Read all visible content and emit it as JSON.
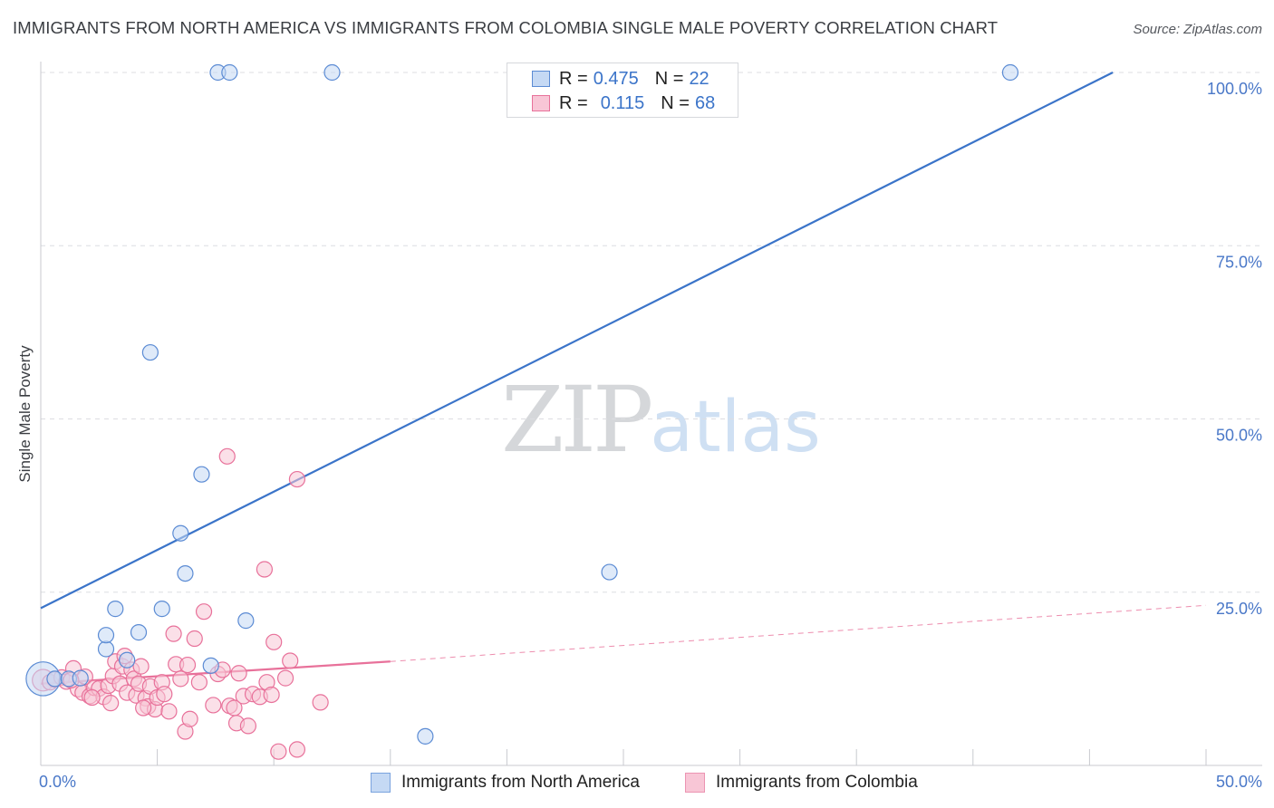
{
  "title": "IMMIGRANTS FROM NORTH AMERICA VS IMMIGRANTS FROM COLOMBIA SINGLE MALE POVERTY CORRELATION CHART",
  "source": "Source: ZipAtlas.com",
  "watermark": {
    "zip": "ZIP",
    "atlas": "atlas"
  },
  "colors": {
    "blue": "#3b74c9",
    "blue_fill": "#c5d9f4",
    "pink": "#e8719a",
    "pink_fill": "#f8c6d6",
    "grid": "#dcdde1"
  },
  "legend_top": {
    "rows": [
      {
        "r_label": "R =",
        "r_value": "0.475",
        "n_label": "N =",
        "n_value": "22"
      },
      {
        "r_label": "R =",
        "r_value": "0.115",
        "n_label": "N =",
        "n_value": "68"
      }
    ]
  },
  "legend_bottom": {
    "items": [
      {
        "label": "Immigrants from North America"
      },
      {
        "label": "Immigrants from Colombia"
      }
    ]
  },
  "chart_data": {
    "type": "scatter",
    "title": "IMMIGRANTS FROM NORTH AMERICA VS IMMIGRANTS FROM COLOMBIA SINGLE MALE POVERTY CORRELATION CHART",
    "xlabel": "",
    "ylabel": "Single Male Poverty",
    "xlim": [
      0,
      50
    ],
    "ylim": [
      0,
      105
    ],
    "x_tick_labels": [
      "0.0%",
      "50.0%"
    ],
    "y_ticks": [
      25,
      50,
      75,
      100
    ],
    "y_tick_labels": [
      "25.0%",
      "50.0%",
      "75.0%",
      "100.0%"
    ],
    "series": [
      {
        "name": "Immigrants from North America",
        "R": 0.475,
        "N": 22,
        "points": [
          [
            0.1,
            12.5,
            2.2
          ],
          [
            0.6,
            12.5,
            1
          ],
          [
            1.2,
            12.5,
            1
          ],
          [
            1.7,
            12.6,
            1
          ],
          [
            2.8,
            16.8,
            1
          ],
          [
            2.8,
            18.8,
            1
          ],
          [
            3.2,
            22.6,
            1
          ],
          [
            3.7,
            15.2,
            1
          ],
          [
            4.2,
            19.2,
            1
          ],
          [
            4.7,
            59.6,
            1
          ],
          [
            5.2,
            22.6,
            1
          ],
          [
            6.0,
            33.5,
            1
          ],
          [
            6.2,
            27.7,
            1
          ],
          [
            6.9,
            42.0,
            1
          ],
          [
            7.3,
            14.4,
            1
          ],
          [
            7.6,
            100,
            1
          ],
          [
            8.1,
            100,
            1
          ],
          [
            8.8,
            20.9,
            1
          ],
          [
            12.5,
            100,
            1
          ],
          [
            16.5,
            4.2,
            1
          ],
          [
            24.4,
            27.9,
            1
          ],
          [
            41.6,
            100,
            1
          ]
        ],
        "trend": {
          "x": [
            0,
            46.0
          ],
          "y": [
            22.7,
            100
          ],
          "dashed_to": null
        }
      },
      {
        "name": "Immigrants from Colombia",
        "R": 0.115,
        "N": 68,
        "points": [
          [
            0.1,
            12.3,
            1.4
          ],
          [
            0.4,
            12.0,
            1
          ],
          [
            0.6,
            12.4,
            1
          ],
          [
            0.9,
            12.7,
            1
          ],
          [
            1.1,
            12.1,
            1
          ],
          [
            1.4,
            14.0,
            1
          ],
          [
            1.6,
            11.0,
            1
          ],
          [
            1.8,
            10.5,
            1
          ],
          [
            1.9,
            12.8,
            1
          ],
          [
            2.1,
            10.0,
            1
          ],
          [
            2.3,
            11.2,
            1
          ],
          [
            2.5,
            11.1,
            1
          ],
          [
            2.7,
            9.9,
            1
          ],
          [
            2.9,
            11.5,
            1
          ],
          [
            3.0,
            9.0,
            1
          ],
          [
            3.1,
            12.9,
            1
          ],
          [
            3.2,
            15.0,
            1
          ],
          [
            3.4,
            11.8,
            1
          ],
          [
            3.5,
            14.3,
            1
          ],
          [
            3.6,
            15.8,
            1
          ],
          [
            3.7,
            10.5,
            1
          ],
          [
            3.9,
            13.8,
            1
          ],
          [
            4.0,
            12.5,
            1
          ],
          [
            4.1,
            10.1,
            1
          ],
          [
            4.2,
            11.8,
            1
          ],
          [
            4.3,
            14.3,
            1
          ],
          [
            4.5,
            9.7,
            1
          ],
          [
            4.6,
            8.5,
            1
          ],
          [
            4.7,
            11.4,
            1
          ],
          [
            4.9,
            8.1,
            1
          ],
          [
            5.0,
            9.8,
            1
          ],
          [
            5.2,
            12.0,
            1
          ],
          [
            5.3,
            10.3,
            1
          ],
          [
            5.5,
            7.8,
            1
          ],
          [
            5.7,
            19.0,
            1
          ],
          [
            5.8,
            14.6,
            1
          ],
          [
            6.0,
            12.5,
            1
          ],
          [
            6.2,
            4.9,
            1
          ],
          [
            6.3,
            14.5,
            1
          ],
          [
            6.4,
            6.7,
            1
          ],
          [
            6.6,
            18.3,
            1
          ],
          [
            7.0,
            22.2,
            1
          ],
          [
            7.4,
            8.7,
            1
          ],
          [
            7.6,
            13.2,
            1
          ],
          [
            7.8,
            13.8,
            1
          ],
          [
            8.0,
            44.6,
            1
          ],
          [
            8.1,
            8.6,
            1
          ],
          [
            8.3,
            8.3,
            1
          ],
          [
            8.4,
            6.1,
            1
          ],
          [
            8.5,
            13.3,
            1
          ],
          [
            8.7,
            10.0,
            1
          ],
          [
            8.9,
            5.7,
            1
          ],
          [
            9.1,
            10.3,
            1
          ],
          [
            9.4,
            9.9,
            1
          ],
          [
            9.6,
            28.3,
            1
          ],
          [
            9.7,
            12.0,
            1
          ],
          [
            10.0,
            17.8,
            1
          ],
          [
            10.2,
            2.0,
            1
          ],
          [
            10.5,
            12.6,
            1
          ],
          [
            10.7,
            15.1,
            1
          ],
          [
            11.0,
            2.3,
            1
          ],
          [
            11.0,
            41.3,
            1
          ],
          [
            12.0,
            9.1,
            1
          ],
          [
            4.4,
            8.3,
            1
          ],
          [
            2.2,
            9.8,
            1
          ],
          [
            1.3,
            12.3,
            1
          ],
          [
            6.8,
            12.0,
            1
          ],
          [
            9.9,
            10.2,
            1
          ]
        ],
        "trend": {
          "x": [
            0,
            15.0
          ],
          "y": [
            11.8,
            15.0
          ],
          "dashed_to": [
            50,
            23.1
          ]
        }
      }
    ]
  }
}
